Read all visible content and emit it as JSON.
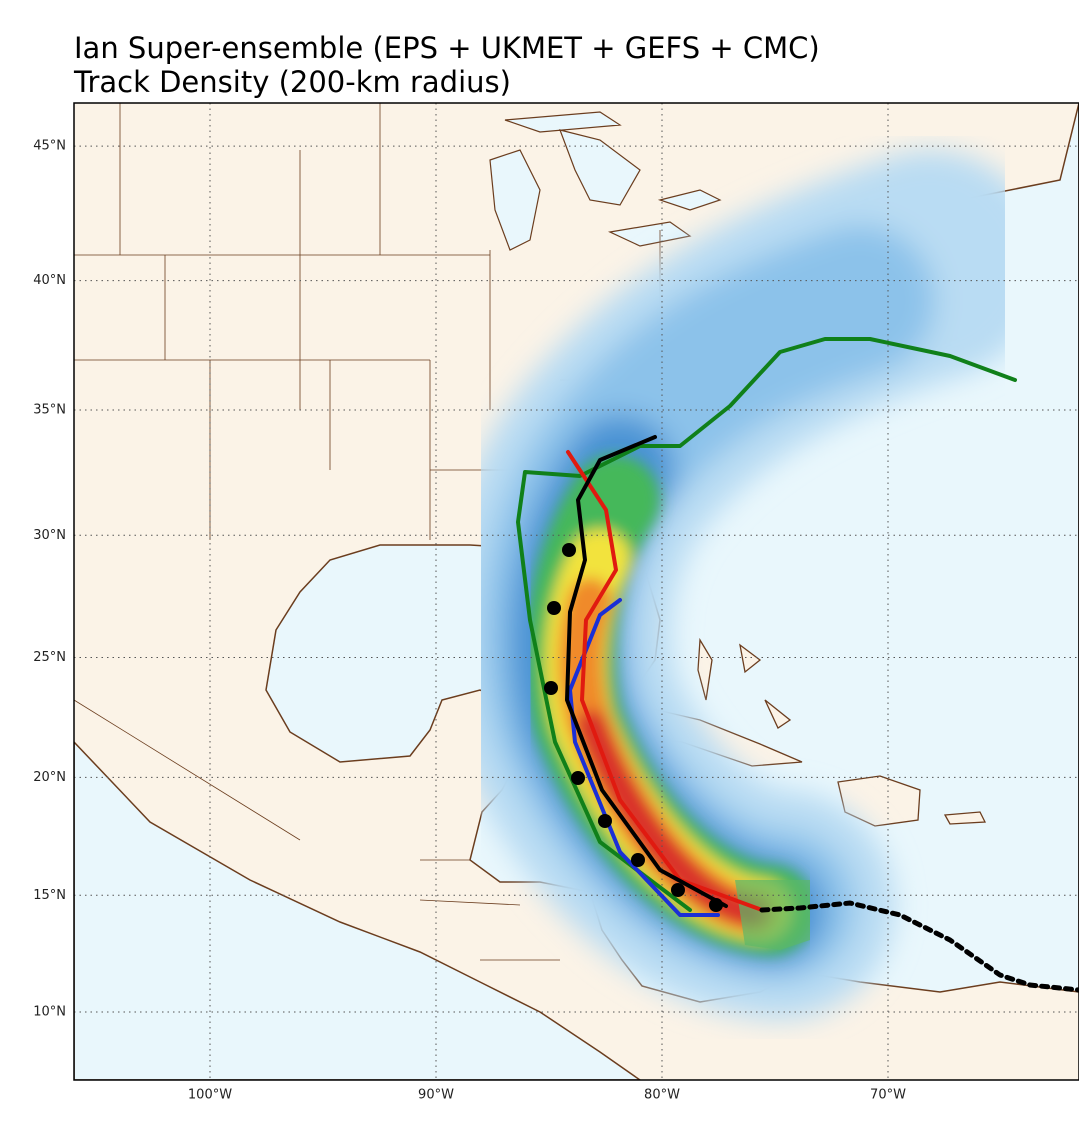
{
  "title_lines": [
    "Ian Super-ensemble (EPS + UKMET + GEFS + CMC)",
    "Track Density (200-km radius)"
  ],
  "map": {
    "lat_ticks": [
      {
        "value": 45,
        "label": "45°N"
      },
      {
        "value": 40,
        "label": "40°N"
      },
      {
        "value": 35,
        "label": "35°N"
      },
      {
        "value": 30,
        "label": "30°N"
      },
      {
        "value": 25,
        "label": "25°N"
      },
      {
        "value": 20,
        "label": "20°N"
      },
      {
        "value": 15,
        "label": "15°N"
      },
      {
        "value": 10,
        "label": "10°N"
      }
    ],
    "lon_ticks": [
      {
        "value": -100,
        "label": "100°W"
      },
      {
        "value": -90,
        "label": "90°W"
      },
      {
        "value": -80,
        "label": "80°W"
      },
      {
        "value": -70,
        "label": "70°W"
      }
    ]
  }
}
